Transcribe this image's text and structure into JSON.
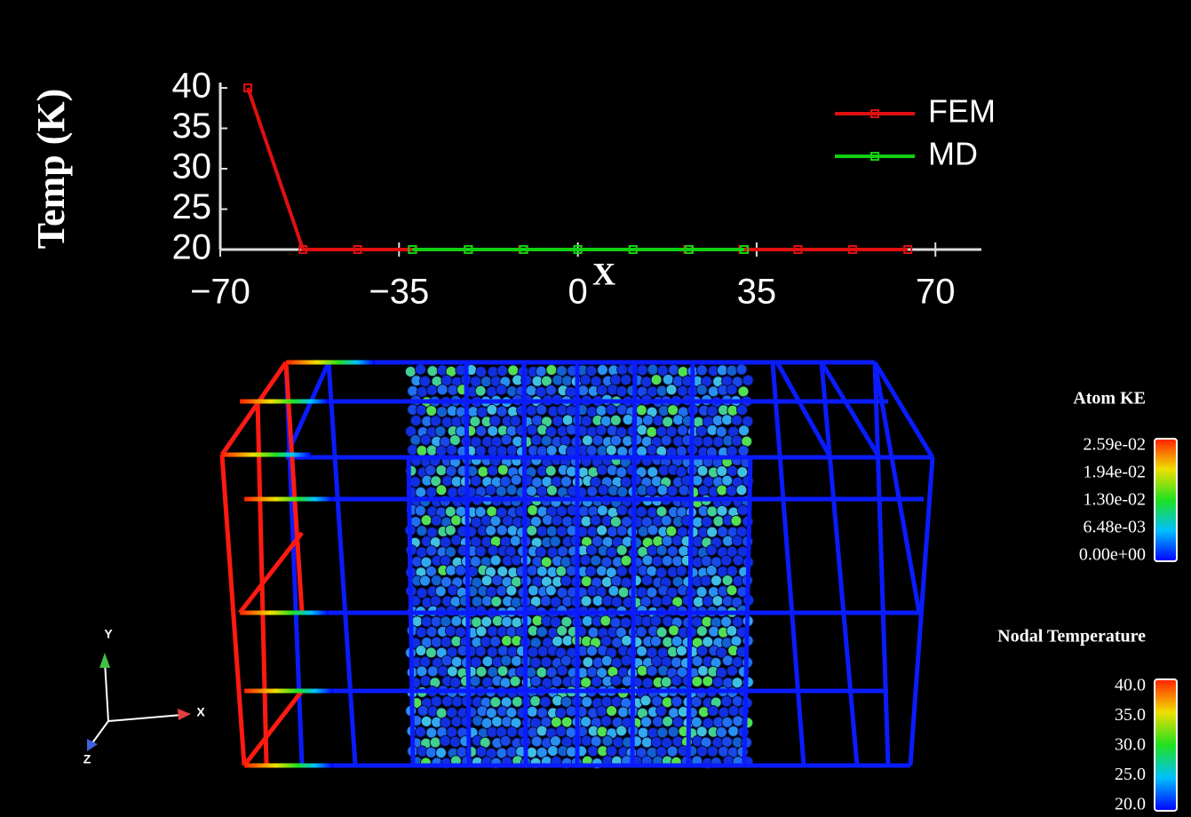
{
  "chart_data": {
    "type": "line",
    "y_label": "Temp (K)",
    "x_label": "X",
    "xlim": [
      -70,
      79
    ],
    "ylim": [
      20,
      40
    ],
    "xticks": [
      {
        "value": -70,
        "label": "−70"
      },
      {
        "value": -35,
        "label": "−35"
      },
      0,
      35,
      70
    ],
    "yticks": [
      20,
      25,
      30,
      35,
      40
    ],
    "legend": "top-right",
    "series": [
      {
        "name": "FEM",
        "color": "#e01010",
        "x": [
          -64.6,
          -53.8,
          -43.1,
          -32.3,
          -21.5,
          -10.8,
          0,
          10.8,
          21.5,
          32.3,
          43.1,
          53.8,
          64.6
        ],
        "values": [
          40,
          20,
          20,
          20,
          20,
          20,
          20,
          20,
          20,
          20,
          20,
          20,
          20
        ]
      },
      {
        "name": "MD",
        "color": "#10d010",
        "x": [
          -32.4,
          -21.4,
          -10.6,
          0,
          10.8,
          21.8,
          32.6
        ],
        "values": [
          20,
          20,
          20,
          20,
          20,
          20,
          20
        ]
      }
    ]
  },
  "colorbars": [
    {
      "title": "Atom KE",
      "labels": [
        "2.59e-02",
        "1.94e-02",
        "1.30e-02",
        "6.48e-03",
        "0.00e+00"
      ]
    },
    {
      "title": "Nodal Temperature",
      "labels": [
        "40.0",
        "35.0",
        "30.0",
        "25.0",
        "20.0"
      ]
    }
  ],
  "triad": {
    "x": "X",
    "y": "Y",
    "z": "Z"
  }
}
